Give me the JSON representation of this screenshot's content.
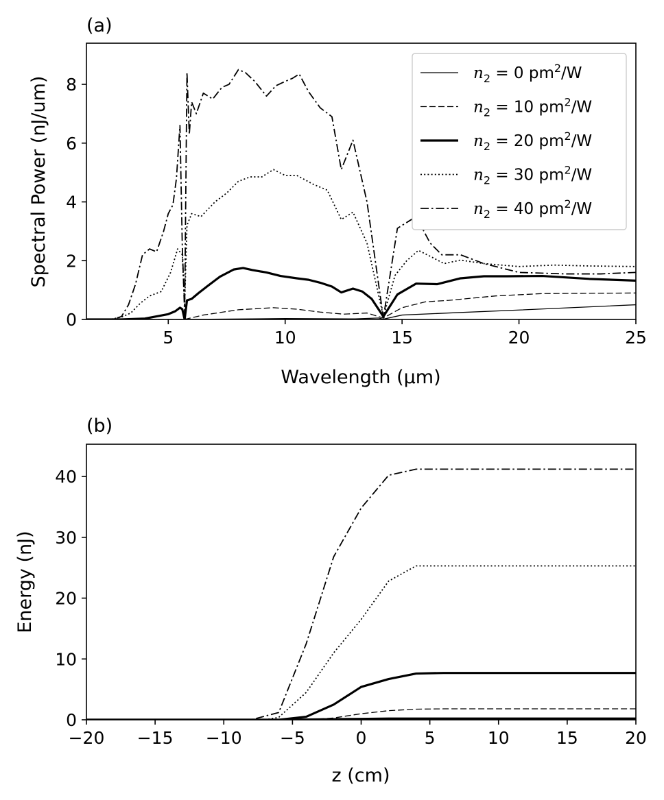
{
  "chart_data": [
    {
      "type": "line",
      "panel_label": "(a)",
      "xlabel": "Wavelength (μm)",
      "ylabel": "Spectral Power (nJ/um)",
      "xlim": [
        1.5,
        25
      ],
      "ylim": [
        0,
        9.4
      ],
      "xticks": [
        5,
        10,
        15,
        20,
        25
      ],
      "yticks": [
        0,
        2,
        4,
        6,
        8
      ],
      "grid": false,
      "legend_position": "top-right",
      "series": [
        {
          "name": "n2 = 0 pm²/W",
          "legend": {
            "var": "n",
            "sub": "2",
            "rest": " = 0 pm",
            "sup": "2",
            "unit": "/W"
          },
          "style": "solid",
          "width": 1.3,
          "x": [
            1.5,
            5.5,
            10,
            13,
            14,
            14.2,
            15,
            17,
            20,
            25
          ],
          "y": [
            0,
            0,
            0.03,
            0.02,
            0.05,
            0.01,
            0.15,
            0.22,
            0.32,
            0.5
          ]
        },
        {
          "name": "n2 = 10 pm²/W",
          "legend": {
            "var": "n",
            "sub": "2",
            "rest": " = 10 pm",
            "sup": "2",
            "unit": "/W"
          },
          "style": "dashed",
          "width": 1.3,
          "x": [
            1.5,
            5.5,
            5.8,
            6.5,
            8,
            9.5,
            10.5,
            11.5,
            12.5,
            13.5,
            14.2,
            15,
            16,
            17,
            19,
            21,
            25
          ],
          "y": [
            0,
            0,
            0.02,
            0.15,
            0.33,
            0.4,
            0.35,
            0.25,
            0.18,
            0.22,
            0.05,
            0.4,
            0.6,
            0.65,
            0.8,
            0.88,
            0.9
          ]
        },
        {
          "name": "n2 = 20 pm²/W",
          "legend": {
            "var": "n",
            "sub": "2",
            "rest": " = 20 pm",
            "sup": "2",
            "unit": "/W"
          },
          "style": "solid",
          "width": 3.2,
          "x": [
            1.5,
            3,
            4,
            5,
            5.3,
            5.5,
            5.6,
            5.7,
            5.8,
            6,
            6.3,
            6.7,
            7.2,
            7.8,
            8.2,
            8.6,
            9.2,
            9.8,
            10.5,
            11,
            11.5,
            12,
            12.4,
            12.9,
            13.3,
            13.7,
            14.2,
            14.8,
            15.6,
            16.5,
            17.5,
            18.5,
            19.5,
            21,
            23,
            25
          ],
          "y": [
            0,
            0,
            0.03,
            0.18,
            0.28,
            0.4,
            0.35,
            0.0,
            0.65,
            0.7,
            0.9,
            1.15,
            1.45,
            1.7,
            1.75,
            1.68,
            1.6,
            1.48,
            1.4,
            1.35,
            1.25,
            1.12,
            0.92,
            1.05,
            0.95,
            0.7,
            0.1,
            0.85,
            1.22,
            1.2,
            1.4,
            1.47,
            1.47,
            1.48,
            1.38,
            1.32
          ]
        },
        {
          "name": "n2 = 30 pm²/W",
          "legend": {
            "var": "n",
            "sub": "2",
            "rest": " = 30 pm",
            "sup": "2",
            "unit": "/W"
          },
          "style": "dotted",
          "width": 1.8,
          "x": [
            1.5,
            2.5,
            3,
            3.4,
            3.8,
            4.2,
            4.7,
            5.1,
            5.4,
            5.6,
            5.7,
            5.8,
            6,
            6.4,
            7,
            7.5,
            8,
            8.5,
            9,
            9.5,
            10,
            10.5,
            11.2,
            11.8,
            12.4,
            12.9,
            13.5,
            14.2,
            14.7,
            15.2,
            15.7,
            16.2,
            16.8,
            17.5,
            18.5,
            20,
            21.5,
            23,
            25
          ],
          "y": [
            0,
            0,
            0.08,
            0.22,
            0.55,
            0.8,
            0.95,
            1.6,
            2.4,
            2.2,
            0.5,
            3.2,
            3.6,
            3.5,
            4.0,
            4.3,
            4.7,
            4.85,
            4.85,
            5.1,
            4.9,
            4.9,
            4.6,
            4.4,
            3.4,
            3.65,
            2.6,
            0.1,
            1.5,
            2.0,
            2.35,
            2.15,
            1.9,
            2.02,
            1.9,
            1.8,
            1.85,
            1.82,
            1.8
          ]
        },
        {
          "name": "n2 = 40 pm²/W",
          "legend": {
            "var": "n",
            "sub": "2",
            "rest": " = 40 pm",
            "sup": "2",
            "unit": "/W"
          },
          "style": "dashdot",
          "width": 1.8,
          "x": [
            1.5,
            2.6,
            3.0,
            3.3,
            3.6,
            3.9,
            4.2,
            4.5,
            4.8,
            5.0,
            5.2,
            5.35,
            5.5,
            5.6,
            5.7,
            5.8,
            5.9,
            6.0,
            6.2,
            6.5,
            6.9,
            7.3,
            7.6,
            8.0,
            8.3,
            8.7,
            9.2,
            9.6,
            10.0,
            10.3,
            10.6,
            11.0,
            11.5,
            12.0,
            12.4,
            12.9,
            13.5,
            14.2,
            14.8,
            15.6,
            16.2,
            16.7,
            17.5,
            18.5,
            20,
            22,
            23.5,
            25
          ],
          "y": [
            0,
            0,
            0.1,
            0.5,
            1.2,
            2.2,
            2.4,
            2.3,
            3.0,
            3.6,
            3.9,
            4.8,
            6.6,
            2.5,
            0.2,
            8.4,
            6.3,
            7.4,
            7.0,
            7.7,
            7.5,
            7.9,
            8.0,
            8.5,
            8.4,
            8.1,
            7.6,
            7.95,
            8.1,
            8.2,
            8.35,
            7.75,
            7.2,
            6.9,
            5.1,
            6.1,
            4.0,
            0.05,
            3.1,
            3.5,
            2.6,
            2.2,
            2.2,
            1.9,
            1.6,
            1.55,
            1.55,
            1.6
          ]
        }
      ]
    },
    {
      "type": "line",
      "panel_label": "(b)",
      "xlabel": "z (cm)",
      "ylabel": "Energy (nJ)",
      "xlim": [
        -20,
        20
      ],
      "ylim": [
        0,
        45.3
      ],
      "xticks": [
        -20,
        -15,
        -10,
        -5,
        0,
        5,
        10,
        15,
        20
      ],
      "xtick_labels": [
        "−20",
        "−15",
        "−10",
        "−5",
        "0",
        "5",
        "10",
        "15",
        "20"
      ],
      "yticks": [
        0,
        10,
        20,
        30,
        40
      ],
      "grid": false,
      "series": [
        {
          "style": "solid",
          "width": 3.2,
          "x": [
            -20,
            -6,
            -4,
            -2,
            0,
            2,
            4,
            6,
            20
          ],
          "y": [
            0,
            0,
            0.05,
            0.1,
            0.15,
            0.2,
            0.2,
            0.2,
            0.2
          ]
        },
        {
          "style": "dashed",
          "width": 1.3,
          "x": [
            -20,
            -4,
            -2,
            0,
            2,
            4,
            6,
            20
          ],
          "y": [
            0,
            0,
            0.3,
            1.0,
            1.5,
            1.75,
            1.8,
            1.8
          ]
        },
        {
          "style": "solid",
          "width": 3.2,
          "x": [
            -20,
            -6,
            -4,
            -2,
            0,
            2,
            4,
            6,
            20
          ],
          "y": [
            0,
            0,
            0.5,
            2.5,
            5.4,
            6.7,
            7.6,
            7.7,
            7.7
          ]
        },
        {
          "style": "dotted",
          "width": 1.8,
          "x": [
            -20,
            -7,
            -6,
            -4,
            -2,
            0,
            2,
            4,
            6,
            20
          ],
          "y": [
            0,
            0,
            0.4,
            4.5,
            11.0,
            16.5,
            22.8,
            25.3,
            25.3,
            25.3
          ]
        },
        {
          "style": "dashdot",
          "width": 1.8,
          "x": [
            -20,
            -8,
            -6,
            -4,
            -2,
            0,
            2,
            4,
            6,
            20
          ],
          "y": [
            0,
            0,
            1.2,
            12.5,
            26.8,
            34.8,
            40.2,
            41.2,
            41.2,
            41.2
          ]
        }
      ]
    }
  ]
}
